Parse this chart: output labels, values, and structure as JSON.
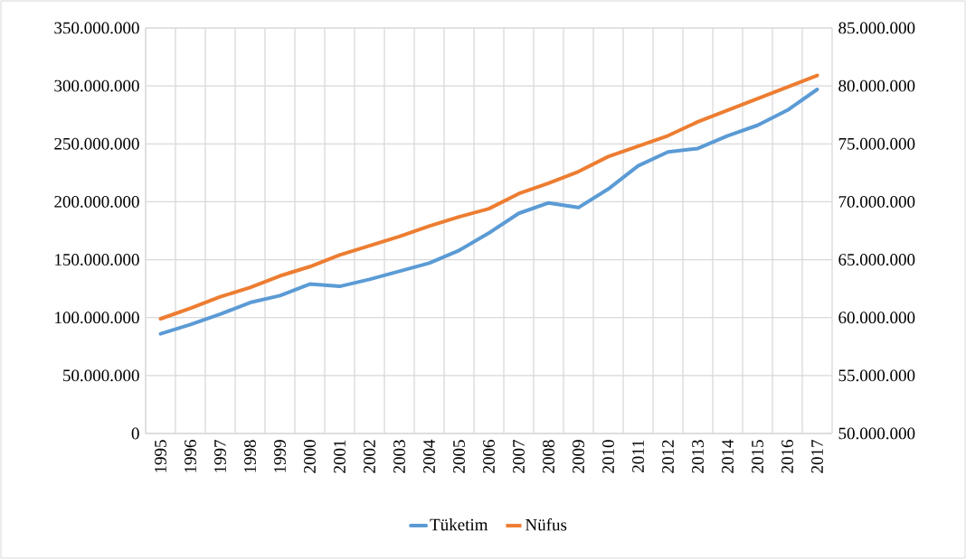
{
  "chart_data": {
    "type": "line",
    "categories": [
      "1995",
      "1996",
      "1997",
      "1998",
      "1999",
      "2000",
      "2001",
      "2002",
      "2003",
      "2004",
      "2005",
      "2006",
      "2007",
      "2008",
      "2009",
      "2010",
      "2011",
      "2012",
      "2013",
      "2014",
      "2015",
      "2016",
      "2017"
    ],
    "series": [
      {
        "name": "Tüketim",
        "color": "#5b9bd5",
        "values": [
          86000000,
          94000000,
          103000000,
          113000000,
          119000000,
          129000000,
          127000000,
          133000000,
          140000000,
          147000000,
          158000000,
          173000000,
          190000000,
          199000000,
          195000000,
          211000000,
          231000000,
          243000000,
          246000000,
          257000000,
          266000000,
          279000000,
          297000000
        ]
      },
      {
        "name": "Nüfus",
        "color": "#ed7d31",
        "axis": "y2",
        "values": [
          59900000,
          60800000,
          61800000,
          62600000,
          63600000,
          64400000,
          65400000,
          66200000,
          67000000,
          67900000,
          68700000,
          69400000,
          70700000,
          71600000,
          72600000,
          73900000,
          74800000,
          75700000,
          76900000,
          77900000,
          78900000,
          79900000,
          80900000
        ]
      }
    ],
    "ylim": [
      0,
      350000000
    ],
    "yticks": [
      0,
      {
        "value": 50000000,
        "label": "50.000.000"
      },
      {
        "value": 100000000,
        "label": "100.000.000"
      },
      {
        "value": 150000000,
        "label": "150.000.000"
      },
      {
        "value": 200000000,
        "label": "200.000.000"
      },
      {
        "value": 250000000,
        "label": "250.000.000"
      },
      {
        "value": 300000000,
        "label": "300.000.000"
      },
      {
        "value": 350000000,
        "label": "350.000.000"
      }
    ],
    "y2lim": [
      50000000,
      85000000
    ],
    "y2ticks": [
      {
        "value": 50000000,
        "label": "50.000.000"
      },
      {
        "value": 55000000,
        "label": "55.000.000"
      },
      {
        "value": 60000000,
        "label": "60.000.000"
      },
      {
        "value": 65000000,
        "label": "65.000.000"
      },
      {
        "value": 70000000,
        "label": "70.000.000"
      },
      {
        "value": 75000000,
        "label": "75.000.000"
      },
      {
        "value": 80000000,
        "label": "80.000.000"
      },
      {
        "value": 85000000,
        "label": "85.000.000"
      }
    ],
    "grid": true,
    "legend": "bottom",
    "marker": "none",
    "line_style": "solid"
  }
}
